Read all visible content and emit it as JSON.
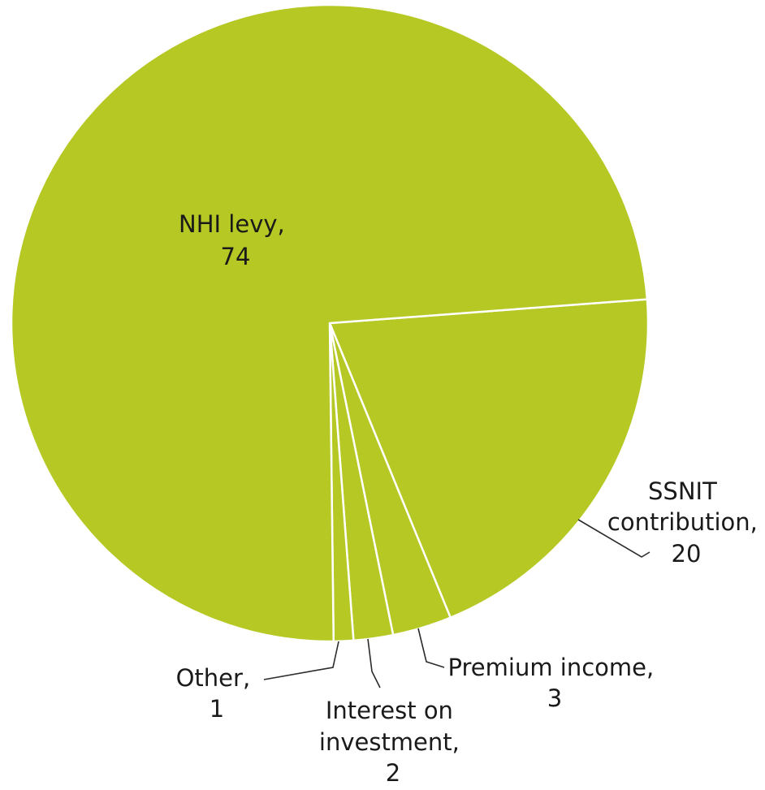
{
  "chart_data": {
    "type": "pie",
    "slices": [
      {
        "label": "NHI levy",
        "value": 74
      },
      {
        "label": "SSNIT contribution",
        "value": 20
      },
      {
        "label": "Premium income",
        "value": 3
      },
      {
        "label": "Interest on investment",
        "value": 2
      },
      {
        "label": "Other",
        "value": 1
      }
    ],
    "label_lines": [
      [
        "NHI levy,",
        "74"
      ],
      [
        "SSNIT",
        "contribution,",
        "20"
      ],
      [
        "Premium income,",
        "3"
      ],
      [
        "Interest on",
        "investment,",
        "2"
      ],
      [
        "Other,",
        "1"
      ]
    ],
    "color": "#b5c823",
    "legend": "none"
  }
}
